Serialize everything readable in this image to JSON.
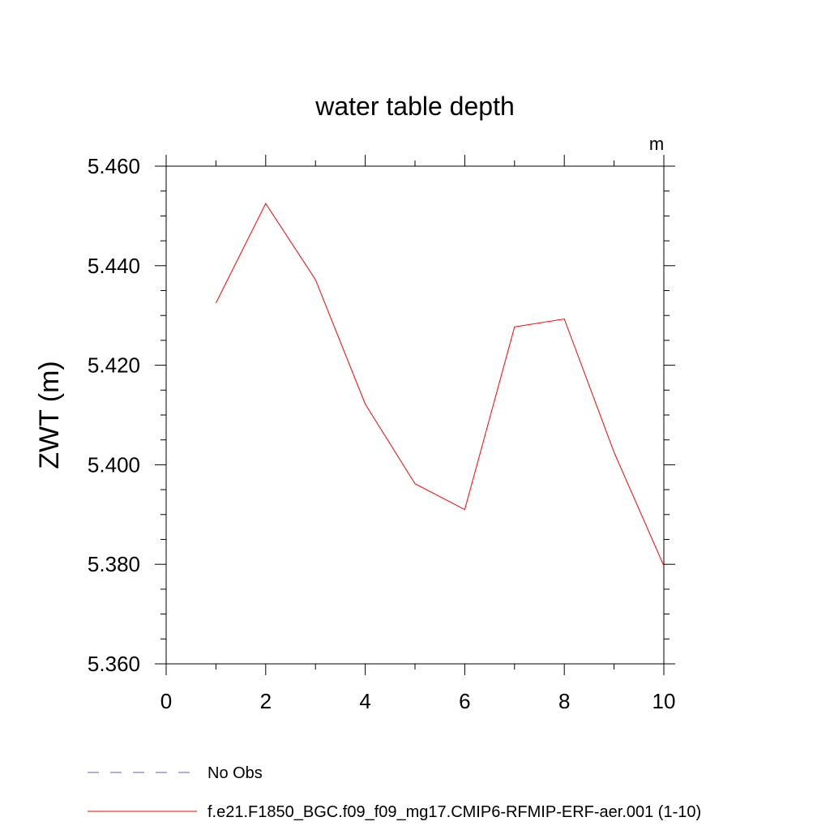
{
  "chart_data": {
    "type": "line",
    "title": "water table depth",
    "units_label": "m",
    "ylabel": "ZWT  (m)",
    "xlabel": "",
    "xlim": [
      0,
      10
    ],
    "ylim": [
      5.36,
      5.46
    ],
    "x_ticks": [
      "0",
      "2",
      "4",
      "6",
      "8",
      "10"
    ],
    "y_ticks": [
      "5.360",
      "5.380",
      "5.400",
      "5.420",
      "5.440",
      "5.460"
    ],
    "x_tick_values": [
      0,
      2,
      4,
      6,
      8,
      10
    ],
    "y_tick_values": [
      5.36,
      5.38,
      5.4,
      5.42,
      5.44,
      5.46
    ],
    "grid": false,
    "series": [
      {
        "name": "f.e21.F1850_BGC.f09_f09_mg17.CMIP6-RFMIP-ERF-aer.001 (1-10)",
        "color": "#ff0000",
        "style": "solid",
        "x": [
          1,
          2,
          3,
          4,
          5,
          6,
          7,
          8,
          9,
          10
        ],
        "y": [
          5.4325,
          5.4525,
          5.4372,
          5.4122,
          5.3962,
          5.391,
          5.4277,
          5.4293,
          5.4025,
          5.3797
        ]
      }
    ],
    "legend": {
      "placement": "bottom-left",
      "entries": [
        {
          "label": "No Obs",
          "color": "#6a5acd",
          "style": "dashed"
        },
        {
          "label": "f.e21.F1850_BGC.f09_f09_mg17.CMIP6-RFMIP-ERF-aer.001 (1-10)",
          "color": "#ff0000",
          "style": "solid"
        }
      ]
    }
  }
}
